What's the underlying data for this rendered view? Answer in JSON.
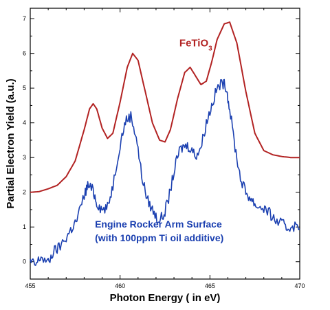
{
  "chart_data": {
    "type": "line",
    "title": "",
    "xlabel": "Photon Energy ( in eV)",
    "ylabel": "Partial Electron Yield (a.u.)",
    "xlim": [
      455,
      470
    ],
    "ylim": [
      -0.5,
      7.3
    ],
    "xticks": [
      455,
      460,
      465,
      470
    ],
    "yticks": [
      0,
      1,
      2,
      3,
      4,
      5,
      6,
      7
    ],
    "grid": false,
    "legend": "none",
    "series": [
      {
        "name": "FeTiO3",
        "color": "#b22222",
        "x": [
          455.0,
          455.5,
          456.0,
          456.5,
          457.0,
          457.5,
          458.0,
          458.3,
          458.5,
          458.7,
          459.0,
          459.3,
          459.6,
          460.0,
          460.4,
          460.7,
          461.0,
          461.4,
          461.8,
          462.2,
          462.5,
          462.8,
          463.2,
          463.6,
          463.9,
          464.2,
          464.5,
          464.8,
          465.1,
          465.4,
          465.8,
          466.1,
          466.5,
          467.0,
          467.5,
          468.0,
          468.5,
          469.0,
          469.5,
          470.0
        ],
        "y": [
          2.0,
          2.02,
          2.1,
          2.2,
          2.45,
          2.9,
          3.8,
          4.4,
          4.55,
          4.4,
          3.85,
          3.55,
          3.7,
          4.6,
          5.6,
          6.0,
          5.8,
          4.9,
          4.0,
          3.5,
          3.45,
          3.8,
          4.7,
          5.45,
          5.6,
          5.35,
          5.1,
          5.2,
          5.75,
          6.4,
          6.85,
          6.9,
          6.3,
          4.9,
          3.7,
          3.2,
          3.08,
          3.03,
          3.0,
          3.0
        ]
      },
      {
        "name": "Engine Rocker Arm Surface (with 100ppm Ti oil additive)",
        "color": "#1a3fb0",
        "x": [
          455.0,
          455.3,
          455.6,
          456.0,
          456.3,
          456.6,
          457.0,
          457.3,
          457.6,
          458.0,
          458.2,
          458.5,
          458.7,
          459.0,
          459.3,
          459.6,
          460.0,
          460.3,
          460.6,
          460.9,
          461.2,
          461.5,
          461.8,
          462.1,
          462.4,
          462.7,
          463.0,
          463.3,
          463.6,
          463.9,
          464.2,
          464.5,
          464.8,
          465.1,
          465.4,
          465.7,
          465.9,
          466.1,
          466.4,
          466.7,
          467.0,
          467.3,
          467.6,
          468.0,
          468.3,
          468.6,
          469.0,
          469.3,
          469.6,
          470.0
        ],
        "y": [
          0.0,
          -0.1,
          0.15,
          -0.05,
          0.3,
          0.4,
          0.7,
          0.95,
          1.2,
          1.9,
          2.2,
          2.05,
          1.7,
          1.5,
          1.55,
          2.2,
          3.4,
          4.05,
          4.2,
          3.6,
          2.5,
          1.8,
          1.5,
          1.2,
          1.3,
          1.8,
          2.6,
          3.2,
          3.35,
          3.3,
          3.05,
          3.3,
          4.0,
          4.5,
          5.0,
          5.15,
          5.05,
          4.4,
          3.3,
          2.4,
          2.0,
          1.8,
          1.6,
          1.55,
          1.4,
          1.2,
          1.1,
          0.95,
          1.05,
          0.95
        ]
      }
    ],
    "annotations": [
      {
        "series": 0,
        "base": "FeTiO",
        "subscript": "3",
        "x": 463.3,
        "y": 6.2,
        "color": "#b22222",
        "size": "large"
      },
      {
        "series": 1,
        "lines": [
          "Engine Rocker Arm Surface",
          "(with 100ppm Ti oil additive)"
        ],
        "x": 458.6,
        "y": 0.98,
        "color": "#1a3fb0",
        "size": "medium"
      }
    ]
  }
}
